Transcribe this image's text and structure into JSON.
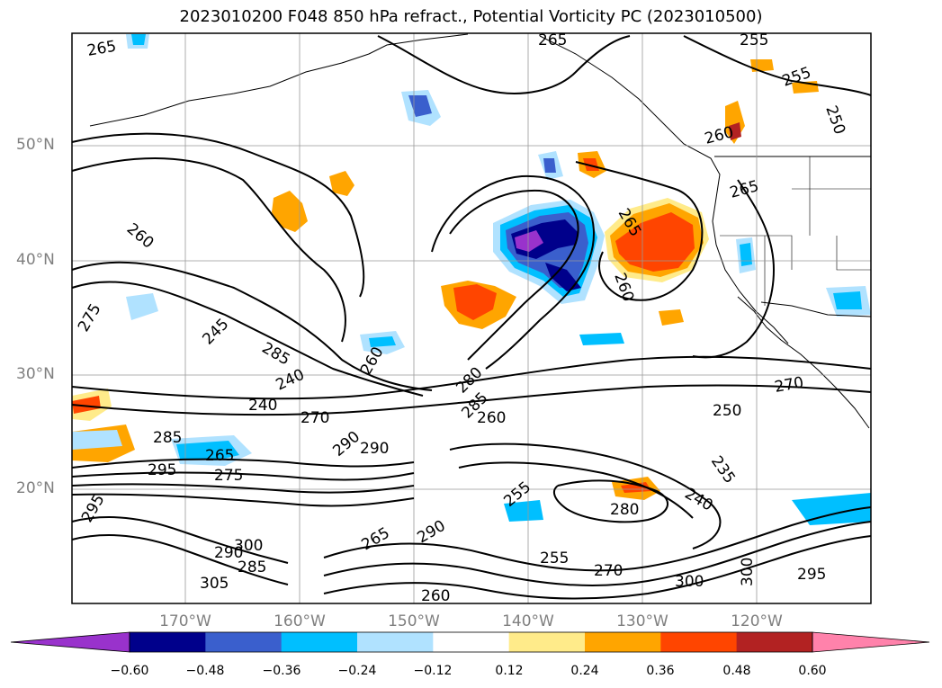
{
  "title": "2023010200 F048 850 hPa refract., Potential Vorticity PC (2023010500)",
  "lat_labels": [
    "50°N",
    "40°N",
    "30°N",
    "20°N"
  ],
  "lon_labels": [
    "170°W",
    "160°W",
    "150°W",
    "140°W",
    "130°W",
    "120°W"
  ],
  "colorbar": {
    "ticks": [
      "−0.60",
      "−0.48",
      "−0.36",
      "−0.24",
      "−0.12",
      "0.12",
      "0.24",
      "0.36",
      "0.48",
      "0.60"
    ],
    "colors": [
      "#9932cc",
      "#00008b",
      "#3a5fcd",
      "#00bfff",
      "#b0e2ff",
      "#ffffff",
      "#ffeb8a",
      "#ffa500",
      "#ff4500",
      "#b22222",
      "#ff82ab"
    ]
  },
  "contour_labels": [
    "265",
    "265",
    "255",
    "255",
    "250",
    "260",
    "265",
    "260",
    "265",
    "260",
    "275",
    "245",
    "285",
    "240",
    "240",
    "260",
    "280",
    "285",
    "290",
    "270",
    "270",
    "250",
    "235",
    "240",
    "255",
    "285",
    "265",
    "290",
    "275",
    "290",
    "295",
    "260",
    "300",
    "305",
    "295",
    "295",
    "300",
    "255",
    "270",
    "280",
    "285",
    "290",
    "300",
    "265",
    "260"
  ]
}
